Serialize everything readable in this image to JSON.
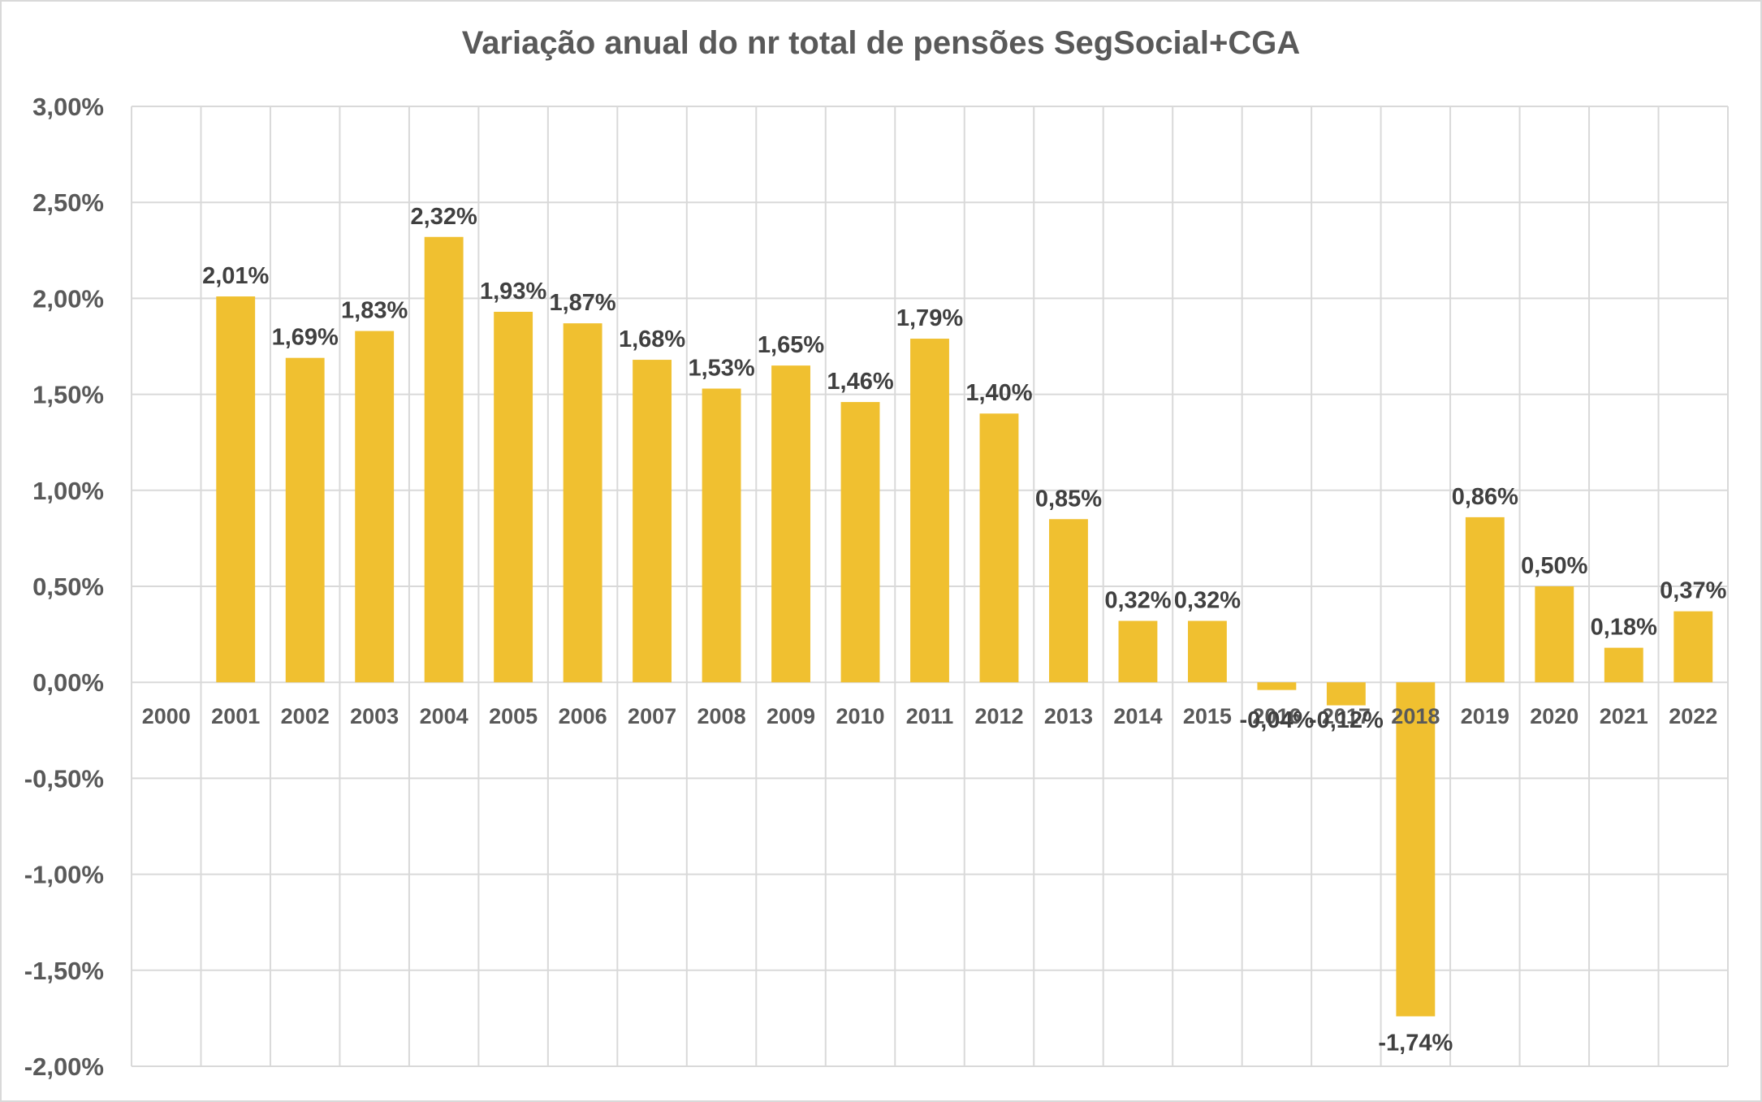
{
  "chart_data": {
    "type": "bar",
    "title": "Variação anual do nr total de pensões SegSocial+CGA",
    "xlabel": "",
    "ylabel": "",
    "ylim": [
      -2.0,
      3.0
    ],
    "yticks": [
      3.0,
      2.5,
      2.0,
      1.5,
      1.0,
      0.5,
      0.0,
      -0.5,
      -1.0,
      -1.5,
      -2.0
    ],
    "ytick_labels": [
      "3,00%",
      "2,50%",
      "2,00%",
      "1,50%",
      "1,00%",
      "0,50%",
      "0,00%",
      "-0,50%",
      "-1,00%",
      "-1,50%",
      "-2,00%"
    ],
    "grid": true,
    "bar_color": "#F0C030",
    "categories": [
      "2000",
      "2001",
      "2002",
      "2003",
      "2004",
      "2005",
      "2006",
      "2007",
      "2008",
      "2009",
      "2010",
      "2011",
      "2012",
      "2013",
      "2014",
      "2015",
      "2016",
      "2017",
      "2018",
      "2019",
      "2020",
      "2021",
      "2022"
    ],
    "values": [
      null,
      2.01,
      1.69,
      1.83,
      2.32,
      1.93,
      1.87,
      1.68,
      1.53,
      1.65,
      1.46,
      1.79,
      1.4,
      0.85,
      0.32,
      0.32,
      -0.04,
      -0.12,
      -1.74,
      0.86,
      0.5,
      0.18,
      0.37
    ],
    "labels": [
      "",
      "2,01%",
      "1,69%",
      "1,83%",
      "2,32%",
      "1,93%",
      "1,87%",
      "1,68%",
      "1,53%",
      "1,65%",
      "1,46%",
      "1,79%",
      "1,40%",
      "0,85%",
      "0,32%",
      "0,32%",
      "-0,04%",
      "-0,12%",
      "-1,74%",
      "0,86%",
      "0,50%",
      "0,18%",
      "0,37%"
    ]
  }
}
